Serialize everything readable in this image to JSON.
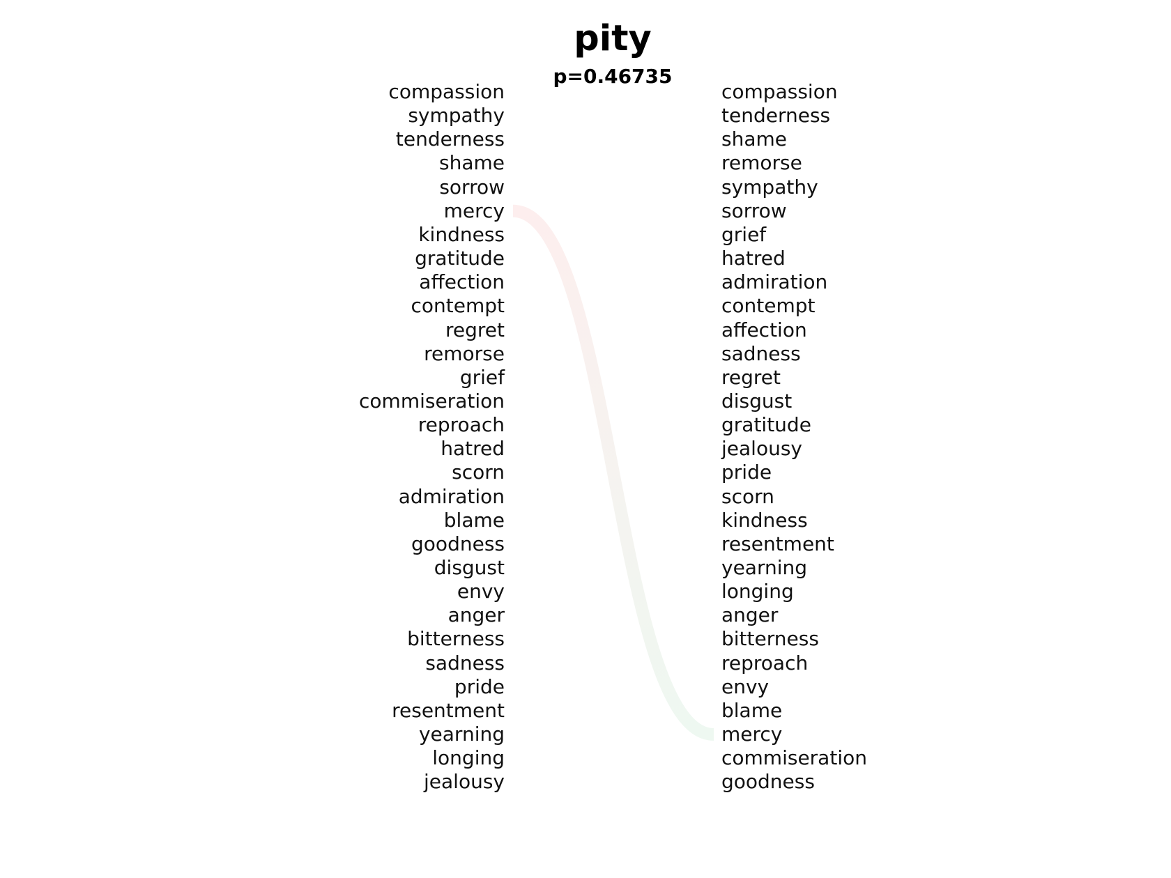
{
  "chart_data": {
    "type": "rank-comparison",
    "title": "pity",
    "subtitle": "p=0.46735",
    "left_ranking": [
      "compassion",
      "sympathy",
      "tenderness",
      "shame",
      "sorrow",
      "mercy",
      "kindness",
      "gratitude",
      "affection",
      "contempt",
      "regret",
      "remorse",
      "grief",
      "commiseration",
      "reproach",
      "hatred",
      "scorn",
      "admiration",
      "blame",
      "goodness",
      "disgust",
      "envy",
      "anger",
      "bitterness",
      "sadness",
      "pride",
      "resentment",
      "yearning",
      "longing",
      "jealousy"
    ],
    "right_ranking": [
      "compassion",
      "tenderness",
      "shame",
      "remorse",
      "sympathy",
      "sorrow",
      "grief",
      "hatred",
      "admiration",
      "contempt",
      "affection",
      "sadness",
      "regret",
      "disgust",
      "gratitude",
      "jealousy",
      "pride",
      "scorn",
      "kindness",
      "resentment",
      "yearning",
      "longing",
      "anger",
      "bitterness",
      "reproach",
      "envy",
      "blame",
      "mercy",
      "commiseration",
      "goodness"
    ],
    "highlighted_links": [
      {
        "word": "mercy",
        "from_rank": 6,
        "to_rank": 28,
        "color_start": "#fdeeee",
        "color_end": "#eef8f1"
      }
    ]
  }
}
